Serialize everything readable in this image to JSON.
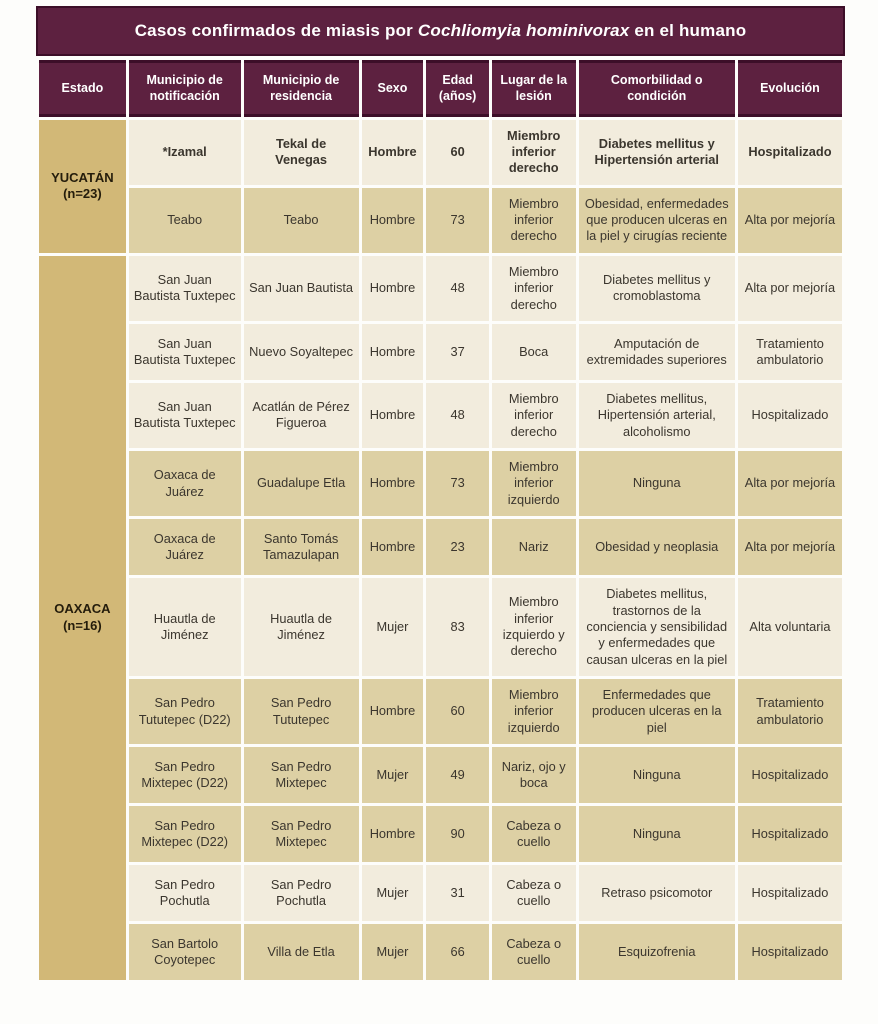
{
  "title": {
    "prefix": "Casos confirmados de miasis por ",
    "species": "Cochliomyia hominivorax",
    "suffix": " en el humano"
  },
  "columns": [
    "Estado",
    "Municipio de notificación",
    "Municipio de residencia",
    "Sexo",
    "Edad (años)",
    "Lugar de la lesión",
    "Comorbilidad o condición",
    "Evolución"
  ],
  "groups": [
    {
      "estado": "YUCATÁN",
      "count_label": "(n=23)",
      "rows": [
        {
          "notificacion": "*Izamal",
          "residencia": "Tekal de Venegas",
          "sexo": "Hombre",
          "edad": 60,
          "lugar": "Miembro inferior derecho",
          "comorbilidad": "Diabetes mellitus y Hipertensión arterial",
          "evolucion": "Hospitalizado",
          "bold": true,
          "shade": "cream"
        },
        {
          "notificacion": "Teabo",
          "residencia": "Teabo",
          "sexo": "Hombre",
          "edad": 73,
          "lugar": "Miembro inferior derecho",
          "comorbilidad": "Obesidad, enfermedades que producen ulceras en la piel y cirugías reciente",
          "evolucion": "Alta por mejoría",
          "bold": false,
          "shade": "tan"
        }
      ]
    },
    {
      "estado": "OAXACA",
      "count_label": "(n=16)",
      "rows": [
        {
          "notificacion": "San Juan Bautista Tuxtepec",
          "residencia": "San Juan Bautista",
          "sexo": "Hombre",
          "edad": 48,
          "lugar": "Miembro inferior derecho",
          "comorbilidad": "Diabetes mellitus y cromoblastoma",
          "evolucion": "Alta por mejoría",
          "bold": false,
          "shade": "cream"
        },
        {
          "notificacion": "San Juan Bautista Tuxtepec",
          "residencia": "Nuevo Soyaltepec",
          "sexo": "Hombre",
          "edad": 37,
          "lugar": "Boca",
          "comorbilidad": "Amputación de extremidades superiores",
          "evolucion": "Tratamiento ambulatorio",
          "bold": false,
          "shade": "cream"
        },
        {
          "notificacion": "San Juan Bautista Tuxtepec",
          "residencia": "Acatlán de Pérez Figueroa",
          "sexo": "Hombre",
          "edad": 48,
          "lugar": "Miembro inferior derecho",
          "comorbilidad": "Diabetes mellitus, Hipertensión arterial, alcoholismo",
          "evolucion": "Hospitalizado",
          "bold": false,
          "shade": "cream"
        },
        {
          "notificacion": "Oaxaca de Juárez",
          "residencia": "Guadalupe Etla",
          "sexo": "Hombre",
          "edad": 73,
          "lugar": "Miembro inferior izquierdo",
          "comorbilidad": "Ninguna",
          "evolucion": "Alta por mejoría",
          "bold": false,
          "shade": "tan"
        },
        {
          "notificacion": "Oaxaca de Juárez",
          "residencia": "Santo Tomás Tamazulapan",
          "sexo": "Hombre",
          "edad": 23,
          "lugar": "Nariz",
          "comorbilidad": "Obesidad y neoplasia",
          "evolucion": "Alta por mejoría",
          "bold": false,
          "shade": "tan"
        },
        {
          "notificacion": "Huautla de Jiménez",
          "residencia": "Huautla de Jiménez",
          "sexo": "Mujer",
          "edad": 83,
          "lugar": "Miembro inferior izquierdo y derecho",
          "comorbilidad": "Diabetes mellitus, trastornos de la conciencia y sensibilidad y enfermedades que causan ulceras en la piel",
          "evolucion": "Alta voluntaria",
          "bold": false,
          "shade": "cream"
        },
        {
          "notificacion": "San Pedro Tututepec (D22)",
          "residencia": "San Pedro Tututepec",
          "sexo": "Hombre",
          "edad": 60,
          "lugar": "Miembro inferior izquierdo",
          "comorbilidad": "Enfermedades que producen ulceras en la piel",
          "evolucion": "Tratamiento ambulatorio",
          "bold": false,
          "shade": "tan"
        },
        {
          "notificacion": "San Pedro Mixtepec (D22)",
          "residencia": "San Pedro Mixtepec",
          "sexo": "Mujer",
          "edad": 49,
          "lugar": "Nariz, ojo y boca",
          "comorbilidad": "Ninguna",
          "evolucion": "Hospitalizado",
          "bold": false,
          "shade": "tan"
        },
        {
          "notificacion": "San Pedro Mixtepec (D22)",
          "residencia": "San Pedro Mixtepec",
          "sexo": "Hombre",
          "edad": 90,
          "lugar": "Cabeza o cuello",
          "comorbilidad": "Ninguna",
          "evolucion": "Hospitalizado",
          "bold": false,
          "shade": "tan"
        },
        {
          "notificacion": "San Pedro Pochutla",
          "residencia": "San Pedro Pochutla",
          "sexo": "Mujer",
          "edad": 31,
          "lugar": "Cabeza o cuello",
          "comorbilidad": "Retraso psicomotor",
          "evolucion": "Hospitalizado",
          "bold": false,
          "shade": "cream"
        },
        {
          "notificacion": "San Bartolo Coyotepec",
          "residencia": "Villa de Etla",
          "sexo": "Mujer",
          "edad": 66,
          "lugar": "Cabeza o cuello",
          "comorbilidad": "Esquizofrenia",
          "evolucion": "Hospitalizado",
          "bold": false,
          "shade": "tan"
        }
      ]
    }
  ],
  "colors": {
    "maroon": "#5d2140",
    "maroon_border": "#3c0e28",
    "header_text": "#ffffff",
    "estado_gold": "#d2b877",
    "row_cream": "#f2ecdd",
    "row_tan": "#ddd0a4",
    "body_text": "#3b362e",
    "estado_text": "#241c0b",
    "grid_white": "#ffffff"
  }
}
